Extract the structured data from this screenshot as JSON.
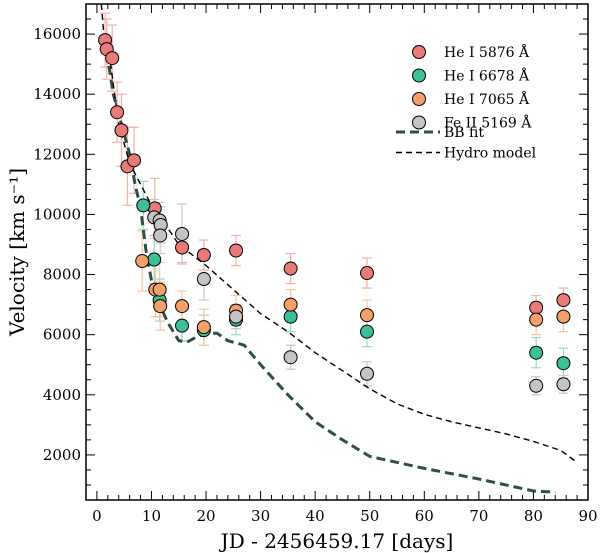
{
  "chart_data": {
    "type": "scatter",
    "xlabel": "JD - 2456459.17 [days]",
    "ylabel": "Velocity [km s⁻¹]",
    "xlim": [
      -2,
      90
    ],
    "ylim": [
      500,
      17000
    ],
    "xticks": [
      0,
      10,
      20,
      30,
      40,
      50,
      60,
      70,
      80,
      90
    ],
    "yticks": [
      2000,
      4000,
      6000,
      8000,
      10000,
      12000,
      14000,
      16000
    ],
    "legend_position": "top-right",
    "series": [
      {
        "name": "He I 5876 Å",
        "color": "#e87a7a",
        "errcolor": "#f2b2a6",
        "points": [
          {
            "x": 1.5,
            "y": 15800,
            "err": 900
          },
          {
            "x": 1.8,
            "y": 15500,
            "err": 1000
          },
          {
            "x": 2.8,
            "y": 15200,
            "err": 1100
          },
          {
            "x": 3.7,
            "y": 13400,
            "err": 1000
          },
          {
            "x": 4.5,
            "y": 12800,
            "err": 1200
          },
          {
            "x": 5.6,
            "y": 11600,
            "err": 1300
          },
          {
            "x": 6.8,
            "y": 11800,
            "err": 1100
          },
          {
            "x": 10.6,
            "y": 10200,
            "err": 1000
          },
          {
            "x": 15.6,
            "y": 8900,
            "err": 500
          },
          {
            "x": 19.6,
            "y": 8650,
            "err": 500
          },
          {
            "x": 25.5,
            "y": 8800,
            "err": 500
          },
          {
            "x": 35.5,
            "y": 8200,
            "err": 500
          },
          {
            "x": 49.5,
            "y": 8050,
            "err": 500
          },
          {
            "x": 80.5,
            "y": 6900,
            "err": 400
          },
          {
            "x": 85.5,
            "y": 7150,
            "err": 400
          }
        ]
      },
      {
        "name": "He I 6678 Å",
        "color": "#3dbf9a",
        "errcolor": "#9ad9c2",
        "points": [
          {
            "x": 8.5,
            "y": 10300,
            "err": 800
          },
          {
            "x": 10.5,
            "y": 8500,
            "err": 800
          },
          {
            "x": 11.5,
            "y": 7150,
            "err": 700
          },
          {
            "x": 15.6,
            "y": 6300,
            "err": 500
          },
          {
            "x": 19.6,
            "y": 6150,
            "err": 500
          },
          {
            "x": 25.5,
            "y": 6500,
            "err": 500
          },
          {
            "x": 35.5,
            "y": 6600,
            "err": 500
          },
          {
            "x": 49.5,
            "y": 6100,
            "err": 500
          },
          {
            "x": 80.5,
            "y": 5400,
            "err": 500
          },
          {
            "x": 85.5,
            "y": 5050,
            "err": 500
          }
        ]
      },
      {
        "name": "He I 7065 Å",
        "color": "#f4a06a",
        "errcolor": "#f6c6a4",
        "points": [
          {
            "x": 8.3,
            "y": 8450,
            "err": 1000
          },
          {
            "x": 10.7,
            "y": 7500,
            "err": 900
          },
          {
            "x": 11.5,
            "y": 7500,
            "err": 900
          },
          {
            "x": 11.6,
            "y": 6950,
            "err": 800
          },
          {
            "x": 15.6,
            "y": 6950,
            "err": 500
          },
          {
            "x": 19.6,
            "y": 6250,
            "err": 600
          },
          {
            "x": 25.5,
            "y": 6800,
            "err": 500
          },
          {
            "x": 35.5,
            "y": 7000,
            "err": 500
          },
          {
            "x": 49.5,
            "y": 6650,
            "err": 500
          },
          {
            "x": 80.5,
            "y": 6500,
            "err": 500
          },
          {
            "x": 85.5,
            "y": 6600,
            "err": 500
          }
        ]
      },
      {
        "name": "Fe II 5169 Å",
        "color": "#c4c4c4",
        "errcolor": "#c8c8c8",
        "points": [
          {
            "x": 10.5,
            "y": 9900,
            "err": 600
          },
          {
            "x": 11.5,
            "y": 9800,
            "err": 600
          },
          {
            "x": 11.7,
            "y": 9650,
            "err": 600
          },
          {
            "x": 11.6,
            "y": 9300,
            "err": 600
          },
          {
            "x": 15.6,
            "y": 9350,
            "err": 1000
          },
          {
            "x": 19.6,
            "y": 7850,
            "err": 700
          },
          {
            "x": 25.5,
            "y": 6600,
            "err": 400
          },
          {
            "x": 35.5,
            "y": 5250,
            "err": 400
          },
          {
            "x": 49.5,
            "y": 4700,
            "err": 400
          },
          {
            "x": 80.5,
            "y": 4300,
            "err": 300
          },
          {
            "x": 85.5,
            "y": 4350,
            "err": 300
          }
        ]
      }
    ],
    "lines": [
      {
        "name": "BB fit",
        "color": "#2e4f45",
        "style": "thick-dashed",
        "points": [
          [
            1.8,
            15400
          ],
          [
            3,
            14000
          ],
          [
            4.5,
            13000
          ],
          [
            6,
            12000
          ],
          [
            7,
            11000
          ],
          [
            8,
            10200
          ],
          [
            9,
            8800
          ],
          [
            10,
            7800
          ],
          [
            11.5,
            7000
          ],
          [
            13,
            6400
          ],
          [
            15,
            5800
          ],
          [
            16.5,
            5750
          ],
          [
            18,
            5900
          ],
          [
            20,
            6050
          ],
          [
            22,
            6050
          ],
          [
            24,
            5800
          ],
          [
            27,
            5650
          ],
          [
            30,
            5000
          ],
          [
            35,
            4000
          ],
          [
            40,
            3100
          ],
          [
            45,
            2500
          ],
          [
            50,
            1950
          ],
          [
            60,
            1550
          ],
          [
            70,
            1200
          ],
          [
            80,
            800
          ],
          [
            82,
            780
          ],
          [
            84,
            760
          ]
        ]
      },
      {
        "name": "Hydro model",
        "color": "#000000",
        "style": "thin-dashed",
        "points": [
          [
            0.8,
            17000
          ],
          [
            1.5,
            15500
          ],
          [
            2.5,
            15000
          ],
          [
            4,
            13000
          ],
          [
            6,
            11700
          ],
          [
            8,
            11000
          ],
          [
            10,
            10300
          ],
          [
            12,
            9800
          ],
          [
            15,
            9000
          ],
          [
            20,
            8300
          ],
          [
            25,
            7500
          ],
          [
            30,
            6700
          ],
          [
            35,
            6100
          ],
          [
            40,
            5400
          ],
          [
            45,
            4800
          ],
          [
            50,
            4200
          ],
          [
            55,
            3700
          ],
          [
            60,
            3350
          ],
          [
            65,
            3100
          ],
          [
            70,
            2900
          ],
          [
            75,
            2700
          ],
          [
            80,
            2450
          ],
          [
            85,
            2150
          ],
          [
            88,
            1750
          ]
        ]
      }
    ]
  }
}
